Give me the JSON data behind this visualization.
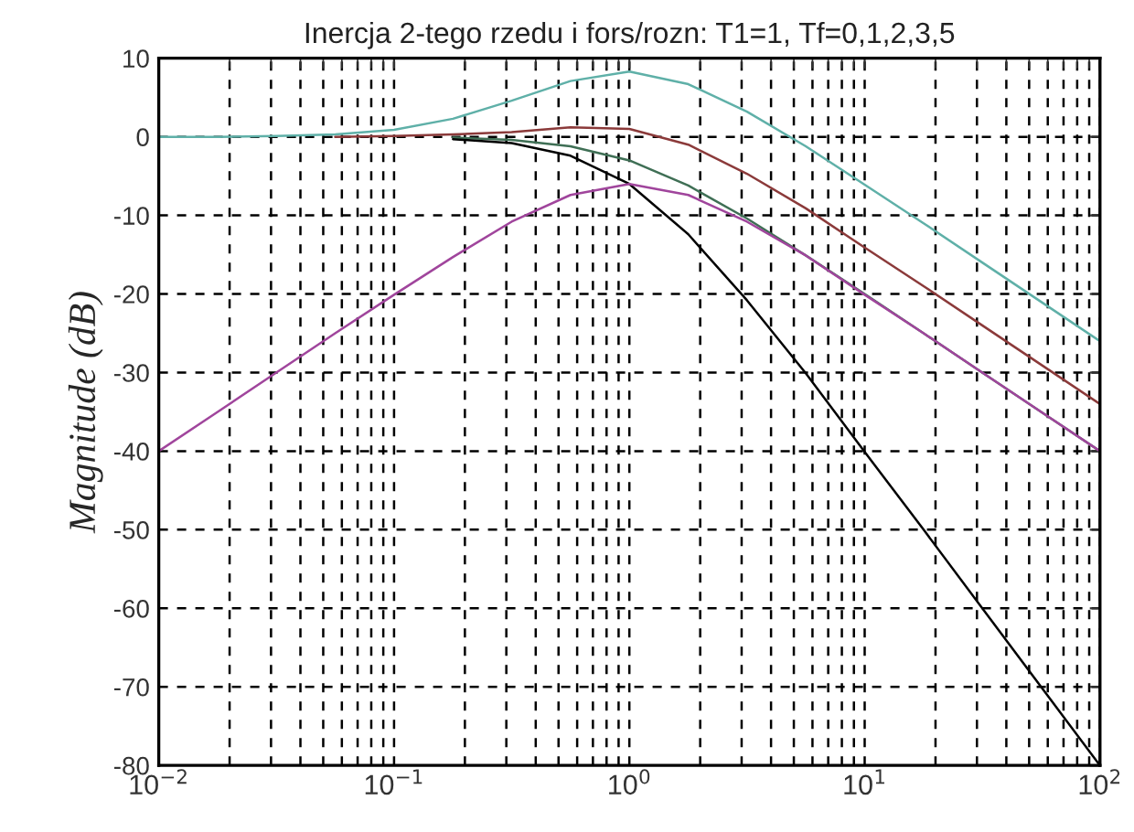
{
  "chart_data": {
    "type": "line",
    "title": "Inercja 2-tego rzedu i fors/rozn: T1=1, Tf=0,1,2,3,5",
    "ylabel": "Magnitude (dB)",
    "log": "x",
    "grid": true,
    "legend": false,
    "marker": "none",
    "line_style": "solid",
    "xlim": [
      0.01,
      100
    ],
    "ylim": [
      -80,
      10
    ],
    "xticks": [
      {
        "value": 0.01,
        "label": "10$^{−2}$"
      },
      {
        "value": 0.1,
        "label": "10$^{−1}$"
      },
      {
        "value": 1,
        "label": "10$^{0}$"
      },
      {
        "value": 10,
        "label": "10$^{1}$"
      },
      {
        "value": 100,
        "label": "10$^{2}$"
      }
    ],
    "yticks": [
      -80,
      -70,
      -60,
      -50,
      -40,
      -30,
      -20,
      -10,
      0,
      10
    ],
    "series": [
      {
        "color": "#5fb0a8",
        "x": [
          0.01,
          0.0178,
          0.0316,
          0.0562,
          0.1,
          0.178,
          0.316,
          0.562,
          1,
          1.78,
          3.16,
          5.62,
          10,
          17.8,
          31.6,
          56.2,
          100
        ],
        "values": [
          0.0,
          0.0,
          0.1,
          0.3,
          0.9,
          2.3,
          4.6,
          7.1,
          8.3,
          6.7,
          3.2,
          -1.2,
          -6.1,
          -11.0,
          -16.0,
          -21.0,
          -26.0
        ]
      },
      {
        "color": "#8b3a3a",
        "x": [
          0.0562,
          0.1,
          0.178,
          0.316,
          0.562,
          1,
          1.78,
          3.16,
          5.62,
          10,
          17.8,
          31.6,
          56.2,
          100
        ],
        "values": [
          0.0,
          0.1,
          0.3,
          0.6,
          1.2,
          1.0,
          -1.0,
          -4.7,
          -9.1,
          -14.1,
          -19.0,
          -24.0,
          -29.0,
          -34.0
        ]
      },
      {
        "color": "#3f6f55",
        "x": [
          0.178,
          0.316,
          0.562,
          1,
          1.78,
          3.16,
          5.62,
          10,
          17.8,
          31.6,
          56.2,
          100
        ],
        "values": [
          -0.1,
          -0.4,
          -1.2,
          -3.0,
          -6.2,
          -10.4,
          -15.1,
          -20.0,
          -25.0,
          -30.0,
          -35.0,
          -40.0
        ]
      },
      {
        "color": "#000000",
        "x": [
          0.178,
          0.316,
          0.562,
          1,
          1.78,
          3.16,
          5.62,
          10,
          17.8,
          31.6,
          56.2,
          100
        ],
        "values": [
          -0.3,
          -0.8,
          -2.4,
          -6.0,
          -12.4,
          -20.8,
          -30.1,
          -40.1,
          -50.0,
          -60.0,
          -70.0,
          -80.0
        ]
      },
      {
        "color": "#a0459c",
        "x": [
          0.01,
          0.0178,
          0.0316,
          0.0562,
          0.1,
          0.178,
          0.316,
          0.562,
          1,
          1.78,
          3.16,
          5.62,
          10,
          17.8,
          31.6,
          56.2,
          100
        ],
        "values": [
          -40.0,
          -35.0,
          -30.0,
          -25.0,
          -20.1,
          -15.3,
          -10.8,
          -7.4,
          -6.0,
          -7.4,
          -10.8,
          -15.1,
          -20.1,
          -25.0,
          -30.0,
          -35.0,
          -40.0
        ]
      }
    ]
  }
}
